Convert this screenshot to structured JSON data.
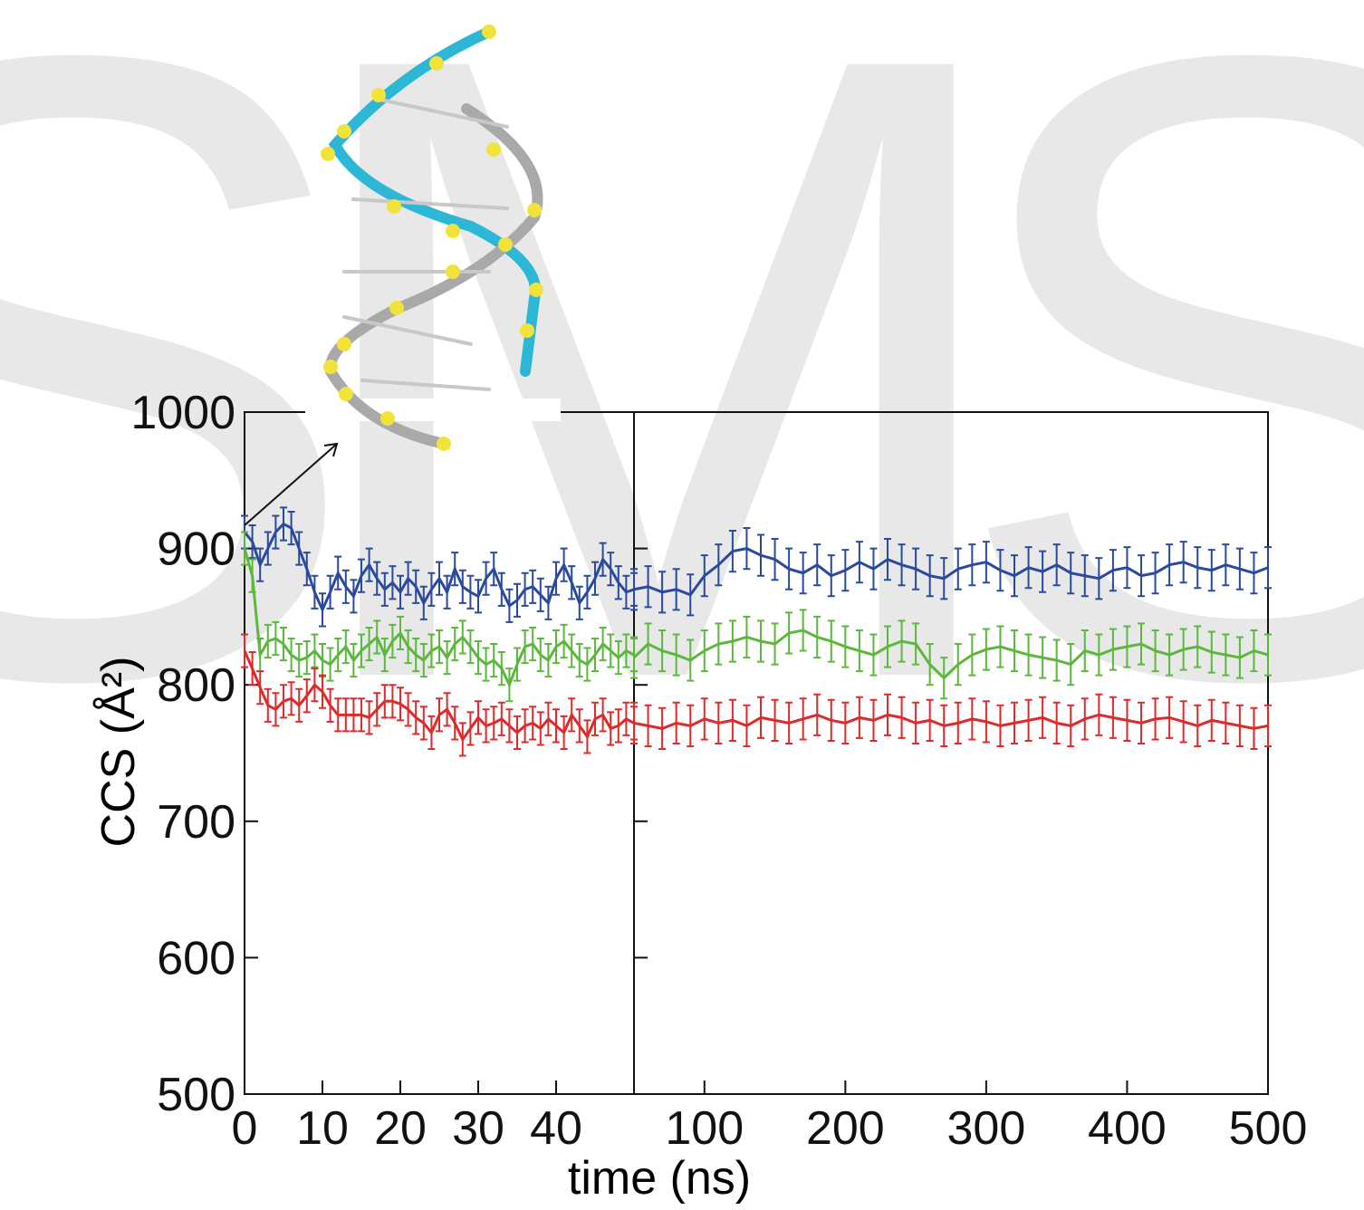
{
  "watermark": "SMS",
  "chart_data": [
    {
      "type": "line",
      "ylabel": "CCS (Å²)",
      "xlim": [
        0,
        50
      ],
      "xticks": [
        0,
        10,
        20,
        30,
        40
      ],
      "ylim": [
        500,
        1000
      ],
      "yticks": [
        500,
        600,
        700,
        800,
        900,
        1000
      ],
      "x": [
        0,
        1,
        2,
        3,
        4,
        5,
        6,
        7,
        8,
        9,
        10,
        11,
        12,
        13,
        14,
        15,
        16,
        17,
        18,
        19,
        20,
        21,
        22,
        23,
        24,
        25,
        26,
        27,
        28,
        29,
        30,
        31,
        32,
        33,
        34,
        35,
        36,
        37,
        38,
        39,
        40,
        41,
        42,
        43,
        44,
        45,
        46,
        47,
        48,
        49,
        50
      ],
      "series": [
        {
          "color": "#2a4aa0",
          "error": 12,
          "values": [
            912,
            905,
            888,
            900,
            912,
            918,
            915,
            900,
            885,
            868,
            855,
            868,
            882,
            872,
            865,
            880,
            888,
            878,
            870,
            875,
            868,
            878,
            872,
            860,
            870,
            878,
            868,
            885,
            872,
            868,
            865,
            878,
            885,
            870,
            858,
            862,
            870,
            872,
            866,
            860,
            878,
            888,
            875,
            860,
            868,
            878,
            892,
            885,
            875,
            868,
            870
          ]
        },
        {
          "color": "#5cb83c",
          "error": 12,
          "values": [
            900,
            880,
            822,
            832,
            834,
            830,
            822,
            818,
            820,
            825,
            818,
            815,
            822,
            828,
            818,
            825,
            830,
            835,
            822,
            832,
            838,
            828,
            822,
            818,
            825,
            828,
            820,
            830,
            835,
            828,
            820,
            815,
            818,
            812,
            800,
            815,
            828,
            830,
            822,
            818,
            828,
            832,
            825,
            818,
            815,
            822,
            830,
            825,
            820,
            825,
            822
          ]
        },
        {
          "color": "#e02a2a",
          "error": 12,
          "values": [
            825,
            812,
            798,
            785,
            782,
            788,
            790,
            785,
            792,
            800,
            795,
            785,
            778,
            778,
            778,
            778,
            776,
            782,
            788,
            788,
            786,
            782,
            776,
            772,
            765,
            778,
            782,
            772,
            760,
            768,
            776,
            770,
            772,
            775,
            770,
            765,
            770,
            772,
            768,
            775,
            770,
            765,
            778,
            770,
            762,
            775,
            778,
            768,
            770,
            775,
            772
          ]
        }
      ]
    },
    {
      "type": "line",
      "xlabel": "time (ns)",
      "xlim": [
        50,
        500
      ],
      "xticks": [
        100,
        200,
        300,
        400,
        500
      ],
      "ylim": [
        500,
        1000
      ],
      "x": [
        50,
        60,
        70,
        80,
        90,
        100,
        110,
        120,
        130,
        140,
        150,
        160,
        170,
        180,
        190,
        200,
        210,
        220,
        230,
        240,
        250,
        260,
        270,
        280,
        290,
        300,
        310,
        320,
        330,
        340,
        350,
        360,
        370,
        380,
        390,
        400,
        410,
        420,
        430,
        440,
        450,
        460,
        470,
        480,
        490,
        500
      ],
      "series": [
        {
          "color": "#2a4aa0",
          "error": 15,
          "values": [
            870,
            872,
            868,
            870,
            866,
            880,
            888,
            898,
            900,
            895,
            892,
            885,
            882,
            888,
            880,
            884,
            890,
            885,
            892,
            888,
            885,
            880,
            878,
            885,
            888,
            890,
            884,
            880,
            886,
            883,
            888,
            882,
            880,
            878,
            884,
            886,
            880,
            882,
            888,
            890,
            886,
            884,
            888,
            885,
            882,
            886
          ]
        },
        {
          "color": "#5cb83c",
          "error": 15,
          "values": [
            820,
            830,
            825,
            822,
            818,
            825,
            830,
            832,
            835,
            832,
            830,
            838,
            840,
            835,
            832,
            828,
            825,
            822,
            828,
            832,
            830,
            815,
            805,
            815,
            822,
            826,
            828,
            825,
            822,
            820,
            818,
            815,
            825,
            822,
            826,
            828,
            830,
            825,
            822,
            826,
            828,
            824,
            822,
            820,
            825,
            822
          ]
        },
        {
          "color": "#e02a2a",
          "error": 15,
          "values": [
            772,
            770,
            768,
            772,
            770,
            775,
            772,
            774,
            770,
            776,
            774,
            772,
            775,
            778,
            774,
            772,
            776,
            774,
            778,
            776,
            772,
            774,
            770,
            772,
            775,
            773,
            770,
            772,
            774,
            776,
            772,
            770,
            775,
            778,
            776,
            774,
            772,
            775,
            776,
            773,
            770,
            774,
            772,
            770,
            768,
            770
          ]
        }
      ]
    }
  ]
}
